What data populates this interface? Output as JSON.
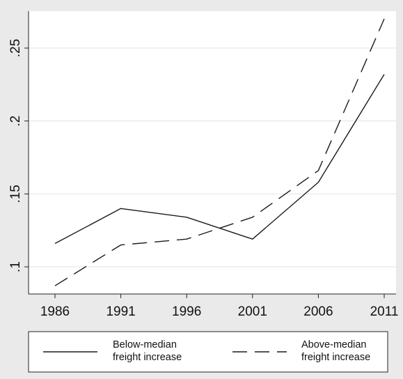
{
  "chart_data": {
    "type": "line",
    "title": "",
    "xlabel": "",
    "ylabel": "",
    "x": [
      1986,
      1991,
      1996,
      2001,
      2006,
      2011
    ],
    "x_tick_labels": [
      "1986",
      "1991",
      "1996",
      "2001",
      "2006",
      "2011"
    ],
    "ylim": [
      0.083,
      0.28
    ],
    "y_ticks": [
      0.1,
      0.15,
      0.2,
      0.25
    ],
    "y_tick_labels": [
      ".1",
      ".15",
      ".2",
      ".25"
    ],
    "grid": true,
    "legend_position": "bottom",
    "series": [
      {
        "name": "Below-median freight increase",
        "legend_lines": [
          "Below-median",
          "freight increase"
        ],
        "style": "solid",
        "color": "#1a1a1a",
        "values": [
          0.116,
          0.14,
          0.134,
          0.119,
          0.158,
          0.232
        ]
      },
      {
        "name": "Above-median freight increase",
        "legend_lines": [
          "Above-median",
          "freight increase"
        ],
        "style": "dashed",
        "color": "#1a1a1a",
        "values": [
          0.087,
          0.115,
          0.119,
          0.134,
          0.166,
          0.27
        ]
      }
    ]
  }
}
